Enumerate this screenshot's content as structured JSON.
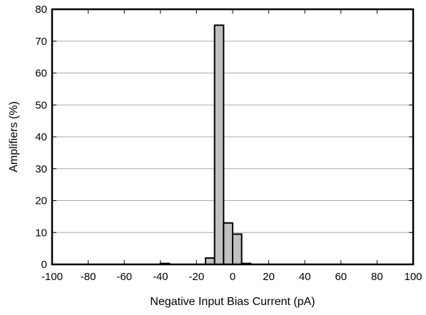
{
  "chart_data": {
    "type": "bar",
    "title": "",
    "xlabel": "Negative Input Bias Current (pA)",
    "ylabel": "Amplifiers (%)",
    "xlim": [
      -100,
      100
    ],
    "ylim": [
      0,
      80
    ],
    "xticks": [
      -100,
      -80,
      -60,
      -40,
      -20,
      0,
      20,
      40,
      60,
      80,
      100
    ],
    "yticks": [
      0,
      10,
      20,
      30,
      40,
      50,
      60,
      70,
      80
    ],
    "grid": "horizontal",
    "legend": "none",
    "bar_color": "#c0c0c0",
    "bin_width": 5,
    "bins": [
      {
        "start": -40,
        "end": -35,
        "value": 0.3
      },
      {
        "start": -15,
        "end": -10,
        "value": 2
      },
      {
        "start": -10,
        "end": -5,
        "value": 75
      },
      {
        "start": -5,
        "end": 0,
        "value": 13
      },
      {
        "start": 0,
        "end": 5,
        "value": 9.5
      },
      {
        "start": 5,
        "end": 10,
        "value": 0.3
      }
    ]
  }
}
